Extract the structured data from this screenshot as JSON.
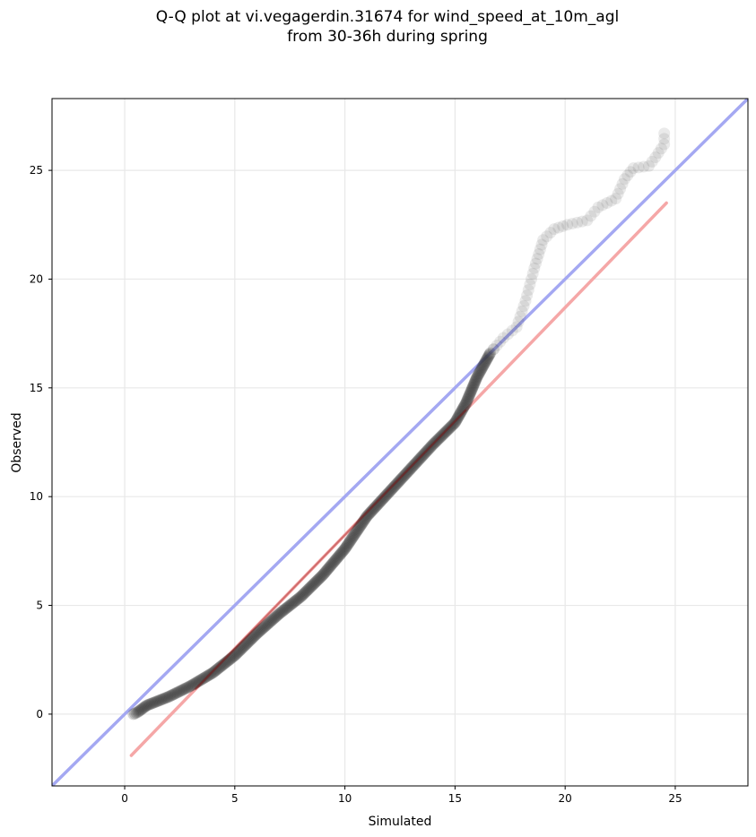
{
  "title_lines": [
    "Q-Q plot at vi.vegagerdin.31674 for wind_speed_at_10m_agl",
    "from 30-36h during spring"
  ],
  "chart_data": {
    "type": "scatter",
    "title": "Q-Q plot at vi.vegagerdin.31674 for wind_speed_at_10m_agl from 30-36h during spring",
    "xlabel": "Simulated",
    "ylabel": "Observed",
    "xlim": [
      -3.3,
      28.3
    ],
    "ylim": [
      -3.3,
      28.3
    ],
    "xticks": [
      0,
      5,
      10,
      15,
      20,
      25
    ],
    "yticks": [
      0,
      5,
      10,
      15,
      20,
      25
    ],
    "grid": true,
    "colors": {
      "points": "#333333",
      "identity_line": "#a4a8f2",
      "fit_line": "#f5a7a7",
      "fit_overlay": "#8b0000",
      "grid": "#e8e8e8"
    },
    "identity_line": {
      "x": [
        -3.3,
        28.3
      ],
      "y": [
        -3.3,
        28.3
      ]
    },
    "fit_line": {
      "x": [
        0.3,
        24.6
      ],
      "y": [
        -1.9,
        23.5
      ]
    },
    "fit_overlay_range": [
      3.2,
      15.5
    ],
    "curve_anchors": [
      [
        0.4,
        0.0
      ],
      [
        0.6,
        0.1
      ],
      [
        1.0,
        0.4
      ],
      [
        2.0,
        0.8
      ],
      [
        3.0,
        1.3
      ],
      [
        4.0,
        1.9
      ],
      [
        5.0,
        2.7
      ],
      [
        6.0,
        3.7
      ],
      [
        7.0,
        4.6
      ],
      [
        8.0,
        5.4
      ],
      [
        9.0,
        6.4
      ],
      [
        10.0,
        7.6
      ],
      [
        11.0,
        9.1
      ],
      [
        12.0,
        10.2
      ],
      [
        13.0,
        11.3
      ],
      [
        14.0,
        12.4
      ],
      [
        15.0,
        13.4
      ],
      [
        15.5,
        14.3
      ],
      [
        16.0,
        15.5
      ],
      [
        16.6,
        16.6
      ],
      [
        17.2,
        17.3
      ],
      [
        17.8,
        17.8
      ],
      [
        18.2,
        19.0
      ],
      [
        18.6,
        20.5
      ],
      [
        19.0,
        21.8
      ],
      [
        19.5,
        22.3
      ],
      [
        20.1,
        22.5
      ],
      [
        21.0,
        22.7
      ],
      [
        21.5,
        23.3
      ],
      [
        22.3,
        23.7
      ],
      [
        22.7,
        24.6
      ],
      [
        23.1,
        25.1
      ],
      [
        23.8,
        25.2
      ],
      [
        24.1,
        25.6
      ],
      [
        24.5,
        26.2
      ],
      [
        24.5,
        26.7
      ]
    ]
  }
}
